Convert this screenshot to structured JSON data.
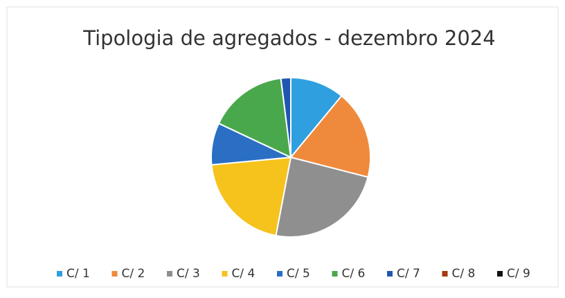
{
  "chart_data": {
    "type": "pie",
    "title": "Tipologia de agregados - dezembro 2024",
    "categories": [
      "C/ 1",
      "C/ 2",
      "C/ 3",
      "C/ 4",
      "C/ 5",
      "C/ 6",
      "C/ 7",
      "C/ 8",
      "C/ 9"
    ],
    "values": [
      11,
      18,
      24,
      20.5,
      8.5,
      16,
      2,
      0,
      0
    ],
    "colors": [
      "#2f9fe0",
      "#ef8a3c",
      "#8f8f8f",
      "#f6c21c",
      "#2a6fc4",
      "#4aa84c",
      "#1f57b0",
      "#a33a10",
      "#111111"
    ],
    "legend": "bottom"
  }
}
